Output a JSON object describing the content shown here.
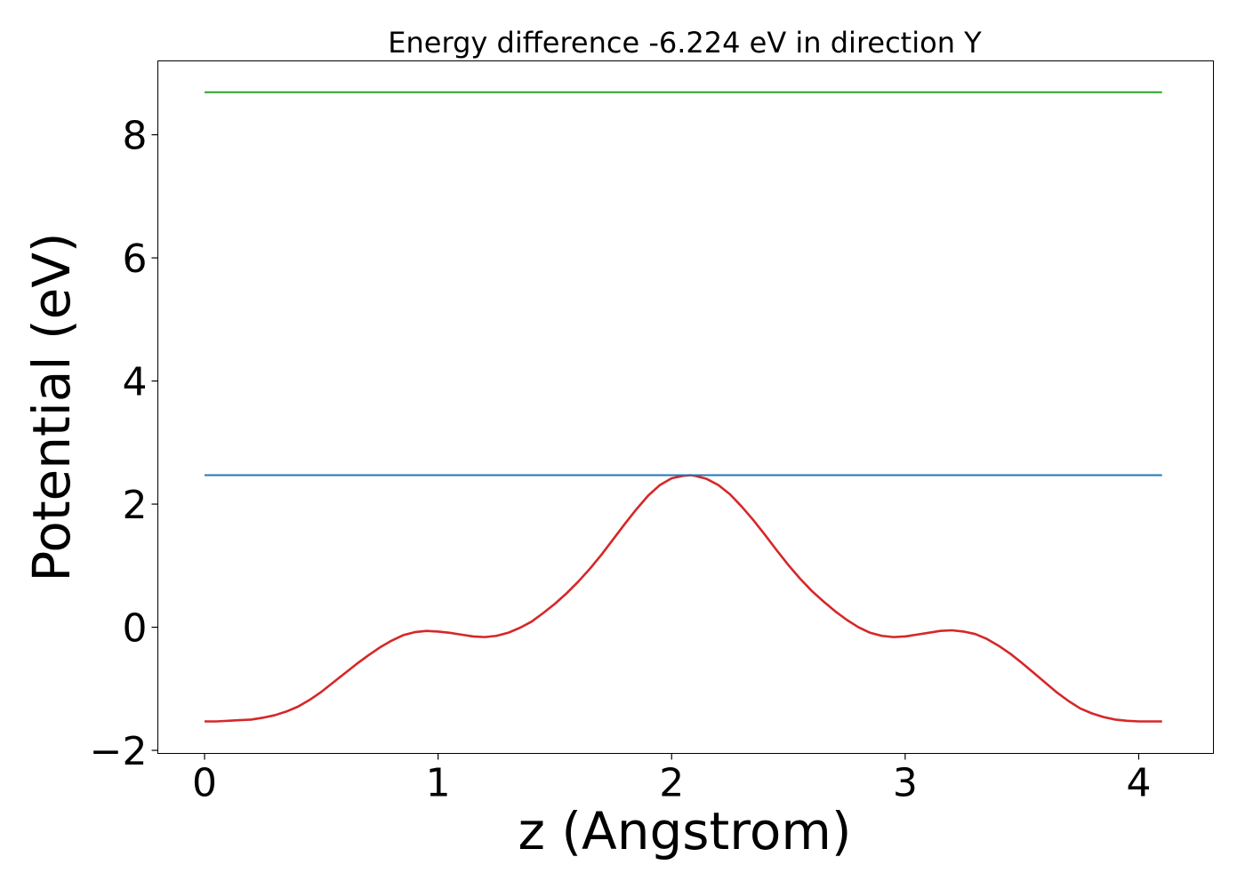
{
  "chart_data": {
    "type": "line",
    "title": "Energy difference -6.224 eV in direction Y",
    "xlabel": "z (Angstrom)",
    "ylabel": "Potential (eV)",
    "xlim": [
      -0.2,
      4.32
    ],
    "ylim": [
      -2.05,
      9.2
    ],
    "xticks": [
      0,
      1,
      2,
      3,
      4
    ],
    "xtick_labels": [
      "0",
      "1",
      "2",
      "3",
      "4"
    ],
    "yticks": [
      -2,
      0,
      2,
      4,
      6,
      8
    ],
    "ytick_labels": [
      "−2",
      "0",
      "2",
      "4",
      "6",
      "8"
    ],
    "grid": false,
    "series": [
      {
        "color": "#d62728",
        "x": [
          0.0,
          0.05,
          0.1,
          0.15,
          0.2,
          0.25,
          0.3,
          0.35,
          0.4,
          0.45,
          0.5,
          0.55,
          0.6,
          0.65,
          0.7,
          0.75,
          0.8,
          0.85,
          0.9,
          0.95,
          1.0,
          1.05,
          1.1,
          1.15,
          1.2,
          1.25,
          1.3,
          1.35,
          1.4,
          1.45,
          1.5,
          1.55,
          1.6,
          1.65,
          1.7,
          1.75,
          1.8,
          1.85,
          1.9,
          1.95,
          2.0,
          2.05,
          2.08,
          2.1,
          2.15,
          2.2,
          2.25,
          2.3,
          2.35,
          2.4,
          2.45,
          2.5,
          2.55,
          2.6,
          2.65,
          2.7,
          2.75,
          2.8,
          2.85,
          2.9,
          2.95,
          3.0,
          3.05,
          3.1,
          3.15,
          3.2,
          3.25,
          3.3,
          3.35,
          3.4,
          3.45,
          3.5,
          3.55,
          3.6,
          3.65,
          3.7,
          3.75,
          3.8,
          3.85,
          3.9,
          3.95,
          4.0,
          4.05,
          4.1
        ],
        "y": [
          -1.53,
          -1.53,
          -1.52,
          -1.51,
          -1.5,
          -1.47,
          -1.43,
          -1.37,
          -1.29,
          -1.18,
          -1.05,
          -0.9,
          -0.75,
          -0.6,
          -0.46,
          -0.33,
          -0.22,
          -0.13,
          -0.08,
          -0.06,
          -0.07,
          -0.09,
          -0.12,
          -0.15,
          -0.16,
          -0.14,
          -0.09,
          -0.01,
          0.09,
          0.23,
          0.38,
          0.55,
          0.74,
          0.95,
          1.18,
          1.43,
          1.68,
          1.92,
          2.14,
          2.31,
          2.42,
          2.46,
          2.47,
          2.46,
          2.41,
          2.31,
          2.16,
          1.96,
          1.74,
          1.5,
          1.25,
          1.01,
          0.79,
          0.59,
          0.42,
          0.26,
          0.12,
          0.0,
          -0.09,
          -0.14,
          -0.16,
          -0.15,
          -0.12,
          -0.09,
          -0.06,
          -0.05,
          -0.07,
          -0.11,
          -0.19,
          -0.3,
          -0.43,
          -0.58,
          -0.74,
          -0.9,
          -1.06,
          -1.2,
          -1.32,
          -1.4,
          -1.46,
          -1.5,
          -1.52,
          -1.53,
          -1.53,
          -1.53
        ]
      },
      {
        "color": "#1f77b4",
        "x": [
          0.0,
          4.1
        ],
        "y": [
          2.47,
          2.47
        ]
      },
      {
        "color": "#2ca02c",
        "x": [
          0.0,
          4.1
        ],
        "y": [
          8.69,
          8.69
        ]
      }
    ]
  }
}
